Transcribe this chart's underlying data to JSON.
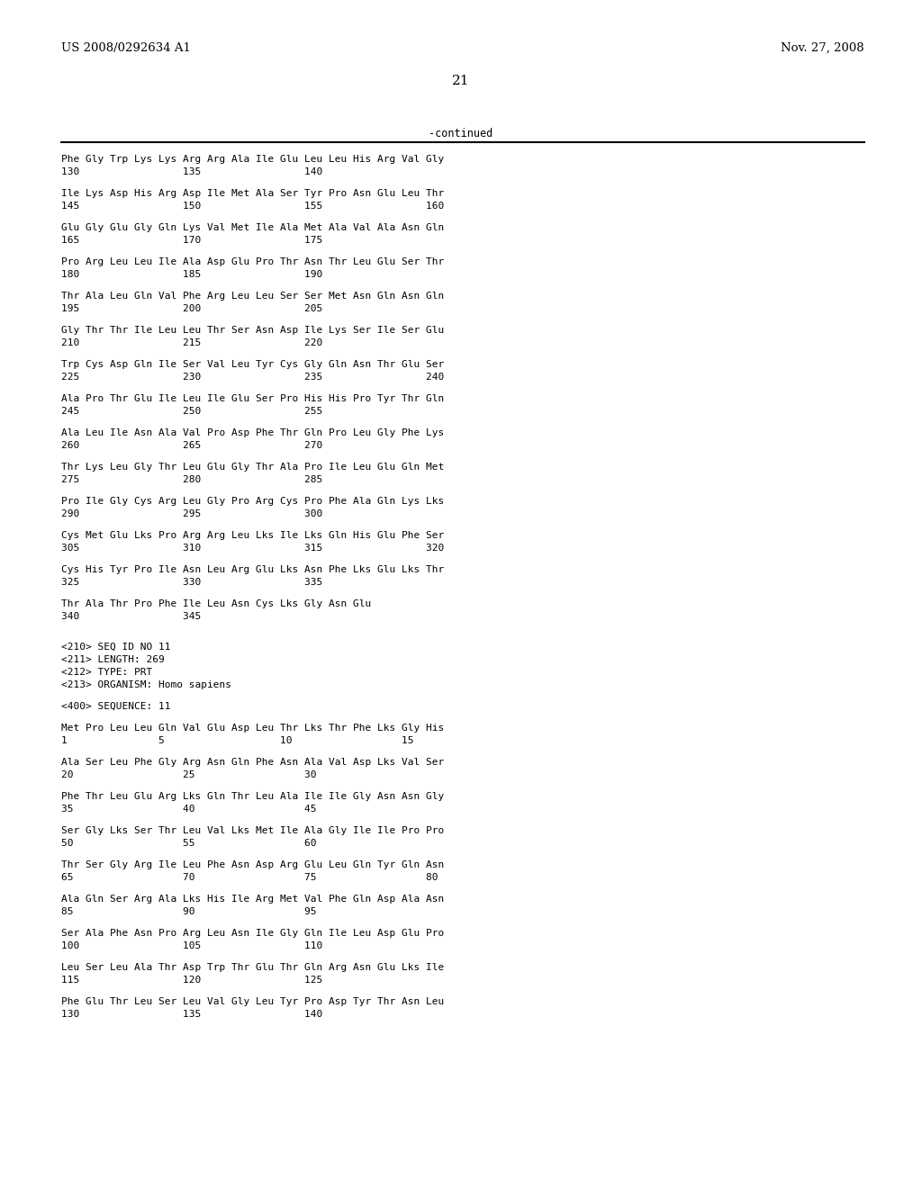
{
  "background_color": "#ffffff",
  "left_header": "US 2008/0292634 A1",
  "right_header": "Nov. 27, 2008",
  "page_number": "21",
  "continued_label": "-continued",
  "content_lines": [
    "Phe Gly Trp Lys Lys Arg Arg Ala Ile Glu Leu Leu His Arg Val Gly",
    "130                 135                 140",
    "",
    "Ile Lys Asp His Arg Asp Ile Met Ala Ser Tyr Pro Asn Glu Leu Thr",
    "145                 150                 155                 160",
    "",
    "Glu Gly Glu Gly Gln Lys Val Met Ile Ala Met Ala Val Ala Asn Gln",
    "165                 170                 175",
    "",
    "Pro Arg Leu Leu Ile Ala Asp Glu Pro Thr Asn Thr Leu Glu Ser Thr",
    "180                 185                 190",
    "",
    "Thr Ala Leu Gln Val Phe Arg Leu Leu Ser Ser Met Asn Gln Asn Gln",
    "195                 200                 205",
    "",
    "Gly Thr Thr Ile Leu Leu Thr Ser Asn Asp Ile Lys Ser Ile Ser Glu",
    "210                 215                 220",
    "",
    "Trp Cys Asp Gln Ile Ser Val Leu Tyr Cys Gly Gln Asn Thr Glu Ser",
    "225                 230                 235                 240",
    "",
    "Ala Pro Thr Glu Ile Leu Ile Glu Ser Pro His His Pro Tyr Thr Gln",
    "245                 250                 255",
    "",
    "Ala Leu Ile Asn Ala Val Pro Asp Phe Thr Gln Pro Leu Gly Phe Lys",
    "260                 265                 270",
    "",
    "Thr Lys Leu Gly Thr Leu Glu Gly Thr Ala Pro Ile Leu Glu Gln Met",
    "275                 280                 285",
    "",
    "Pro Ile Gly Cys Arg Leu Gly Pro Arg Cys Pro Phe Ala Gln Lys Lys",
    "290                 295                 300",
    "",
    "Cys Met Glu Lys Pro Arg Arg Leu Lys Ile Lys Gln His Glu Phe Ser",
    "305                 310                 315                 320",
    "",
    "Cys His Tyr Pro Ile Asn Leu Arg Glu Lys Asn Phe Lys Glu Lk Thr",
    "325                 330                 335",
    "",
    "Thr Ala Thr Pro Phe Ile Leu Asn Cys Lk Gly Asn Glu",
    "340                 345",
    "",
    "",
    "<210> SEQ ID NO 11",
    "<211> LENGTH: 269",
    "<212> TYPE: PRT",
    "<213> ORGANISM: Homo sapiens",
    "",
    "<400> SEQUENCE: 11",
    "",
    "Met Pro Leu Leu Gln Val Glu Asp Leu Thr Lys Thr Phe Lys Gly His",
    "1               5                   10                  15",
    "",
    "Ala Ser Leu Phe Gly Arg Asn Gln Phe Asn Ala Val Asp Lk Val Ser",
    "20                  25                  30",
    "",
    "Phe Thr Leu Glu Arg Lk Gln Thr Leu Ala Ile Ile Gly Asn Asn Gly",
    "35                  40                  45",
    "",
    "Ser Gly Lk Ser Thr Leu Val Lk Met Ile Ala Gly Ile Ile Pro Pro",
    "50                  55                  60",
    "",
    "Thr Ser Gly Arg Ile Leu Phe Asn Asp Arg Glu Leu Gln Tyr Gln Asn",
    "65                  70                  75                  80",
    "",
    "Ala Gln Ser Arg Ala Lk His Ile Arg Met Val Phe Gln Asp Ala Asn",
    "85                  90                  95",
    "",
    "Ser Ala Phe Asn Pro Arg Leu Asn Ile Gly Gln Ile Leu Asp Glu Pro",
    "100                 105                 110",
    "",
    "Leu Ser Leu Ala Thr Asp Trp Thr Glu Thr Gln Arg Asn Glu Lk Ile",
    "115                 120                 125",
    "",
    "Phe Glu Thr Leu Ser Leu Val Gly Leu Tyr Pro Asp Tyr Thr Asn Leu",
    "130                 135                 140"
  ],
  "corrected_lines": [
    "Phe Gly Trp Lys Lys Arg Arg Ala Ile Glu Leu Leu His Arg Val Gly",
    "130                 135                 140",
    "",
    "Ile Lys Asp His Arg Asp Ile Met Ala Ser Tyr Pro Asn Glu Leu Thr",
    "145                 150                 155                 160",
    "",
    "Glu Gly Glu Gly Gln Lys Val Met Ile Ala Met Ala Val Ala Asn Gln",
    "165                 170                 175",
    "",
    "Pro Arg Leu Leu Ile Ala Asp Glu Pro Thr Asn Thr Leu Glu Ser Thr",
    "180                 185                 190",
    "",
    "Thr Ala Leu Gln Val Phe Arg Leu Leu Ser Ser Met Asn Gln Asn Gln",
    "195                 200                 205",
    "",
    "Gly Thr Thr Ile Leu Leu Thr Ser Asn Asp Ile Lys Ser Ile Ser Glu",
    "210                 215                 220",
    "",
    "Trp Cys Asp Gln Ile Ser Val Leu Tyr Cys Gly Gln Asn Thr Glu Ser",
    "225                 230                 235                 240",
    "",
    "Ala Pro Thr Glu Ile Leu Ile Glu Ser Pro His His Pro Tyr Thr Gln",
    "245                 250                 255",
    "",
    "Ala Leu Ile Asn Ala Val Pro Asp Phe Thr Gln Pro Leu Gly Phe Lys",
    "260                 265                 270",
    "",
    "Thr Lys Leu Gly Thr Leu Glu Gly Thr Ala Pro Ile Leu Glu Gln Met",
    "275                 280                 285",
    "",
    "Pro Ile Gly Cys Arg Leu Gly Pro Arg Cys Pro Phe Ala Gln Lys Lys",
    "290                 295                 300",
    "",
    "Cys Met Glu Lys Pro Arg Arg Leu Lys Ile Lys Gln His Glu Phe Ser",
    "305                 310                 315                 320",
    "",
    "Cys His Tyr Pro Ile Asn Leu Arg Glu Lys Asn Phe Lys Glu Lys Thr",
    "325                 330                 335",
    "",
    "Thr Ala Thr Pro Phe Ile Leu Asn Cys Lys Gly Asn Glu",
    "340                 345",
    "",
    "",
    "<210> SEQ ID NO 11",
    "<211> LENGTH: 269",
    "<212> TYPE: PRT",
    "<213> ORGANISM: Homo sapiens",
    "",
    "<400> SEQUENCE: 11",
    "",
    "Met Pro Leu Leu Gln Val Glu Asp Leu Thr Lys Thr Phe Lys Gly His",
    "1               5                   10                  15",
    "",
    "Ala Ser Leu Phe Gly Arg Asn Gln Phe Asn Ala Val Asp Lks Val Ser",
    "20                  25                  30",
    "",
    "Phe Thr Leu Glu Arg Lks Gln Thr Leu Ala Ile Ile Gly Asn Asn Gly",
    "35                  40                  45",
    "",
    "Ser Gly Lks Ser Thr Leu Val Lks Met Ile Ala Gly Ile Ile Pro Pro",
    "50                  55                  60",
    "",
    "Thr Ser Gly Arg Ile Leu Phe Asn Asp Arg Glu Leu Gln Tyr Gln Asn",
    "65                  70                  75                  80",
    "",
    "Ala Gln Ser Arg Ala Lks His Ile Arg Met Val Phe Gln Asp Ala Asn",
    "85                  90                  95",
    "",
    "Ser Ala Phe Asn Pro Arg Leu Asn Ile Gly Gln Ile Leu Asp Glu Pro",
    "100                 105                 110",
    "",
    "Leu Ser Leu Ala Thr Asp Trp Thr Glu Thr Gln Arg Asn Glu Lks Ile",
    "115                 120                 125",
    "",
    "Phe Glu Thr Leu Ser Leu Val Gly Leu Tyr Pro Asp Tyr Thr Asn Leu",
    "130                 135                 140"
  ]
}
